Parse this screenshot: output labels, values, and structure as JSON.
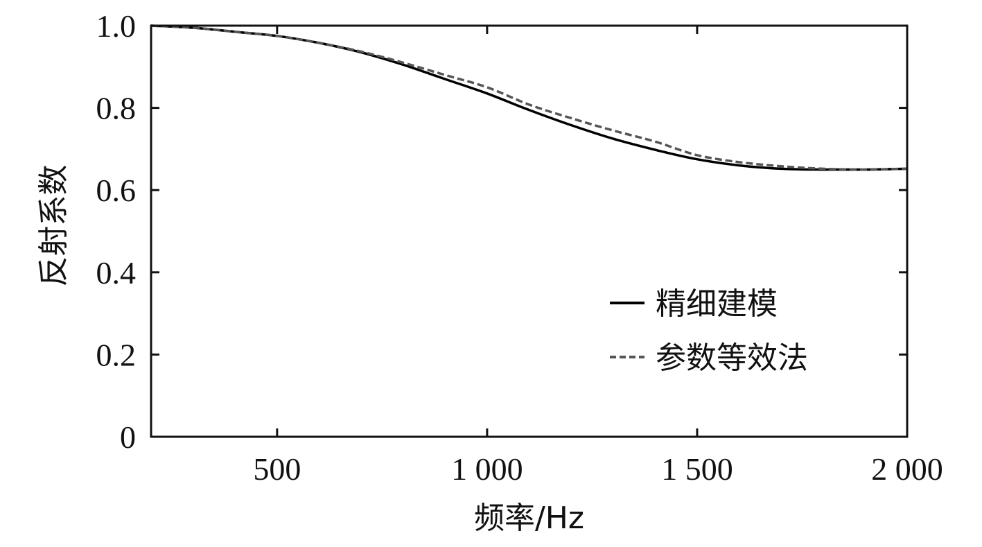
{
  "chart_data": {
    "type": "line",
    "title": "",
    "xlabel": "频率/Hz",
    "ylabel": "反射系数",
    "xlim": [
      200,
      2000
    ],
    "ylim": [
      0,
      1.0
    ],
    "xticks": [
      500,
      1000,
      1500,
      2000
    ],
    "xtick_labels": [
      "500",
      "1 000",
      "1 500",
      "2 000"
    ],
    "yticks": [
      0,
      0.2,
      0.4,
      0.6,
      0.8,
      1.0
    ],
    "ytick_labels": [
      "0",
      "0.2",
      "0.4",
      "0.6",
      "0.8",
      "1.0"
    ],
    "grid": false,
    "legend_position": "center-right",
    "x": [
      200,
      300,
      400,
      500,
      600,
      700,
      800,
      900,
      1000,
      1100,
      1200,
      1300,
      1400,
      1500,
      1600,
      1700,
      1800,
      1900,
      2000
    ],
    "series": [
      {
        "name": "精细建模",
        "style": "solid",
        "color": "#000000",
        "values": [
          1.0,
          0.995,
          0.985,
          0.975,
          0.958,
          0.935,
          0.905,
          0.87,
          0.835,
          0.795,
          0.758,
          0.725,
          0.698,
          0.675,
          0.66,
          0.652,
          0.65,
          0.65,
          0.652
        ]
      },
      {
        "name": "参数等效法",
        "style": "dashed",
        "color": "#555555",
        "values": [
          1.0,
          0.995,
          0.985,
          0.975,
          0.958,
          0.937,
          0.91,
          0.88,
          0.85,
          0.808,
          0.775,
          0.745,
          0.718,
          0.685,
          0.668,
          0.658,
          0.652,
          0.65,
          0.652
        ]
      }
    ]
  }
}
